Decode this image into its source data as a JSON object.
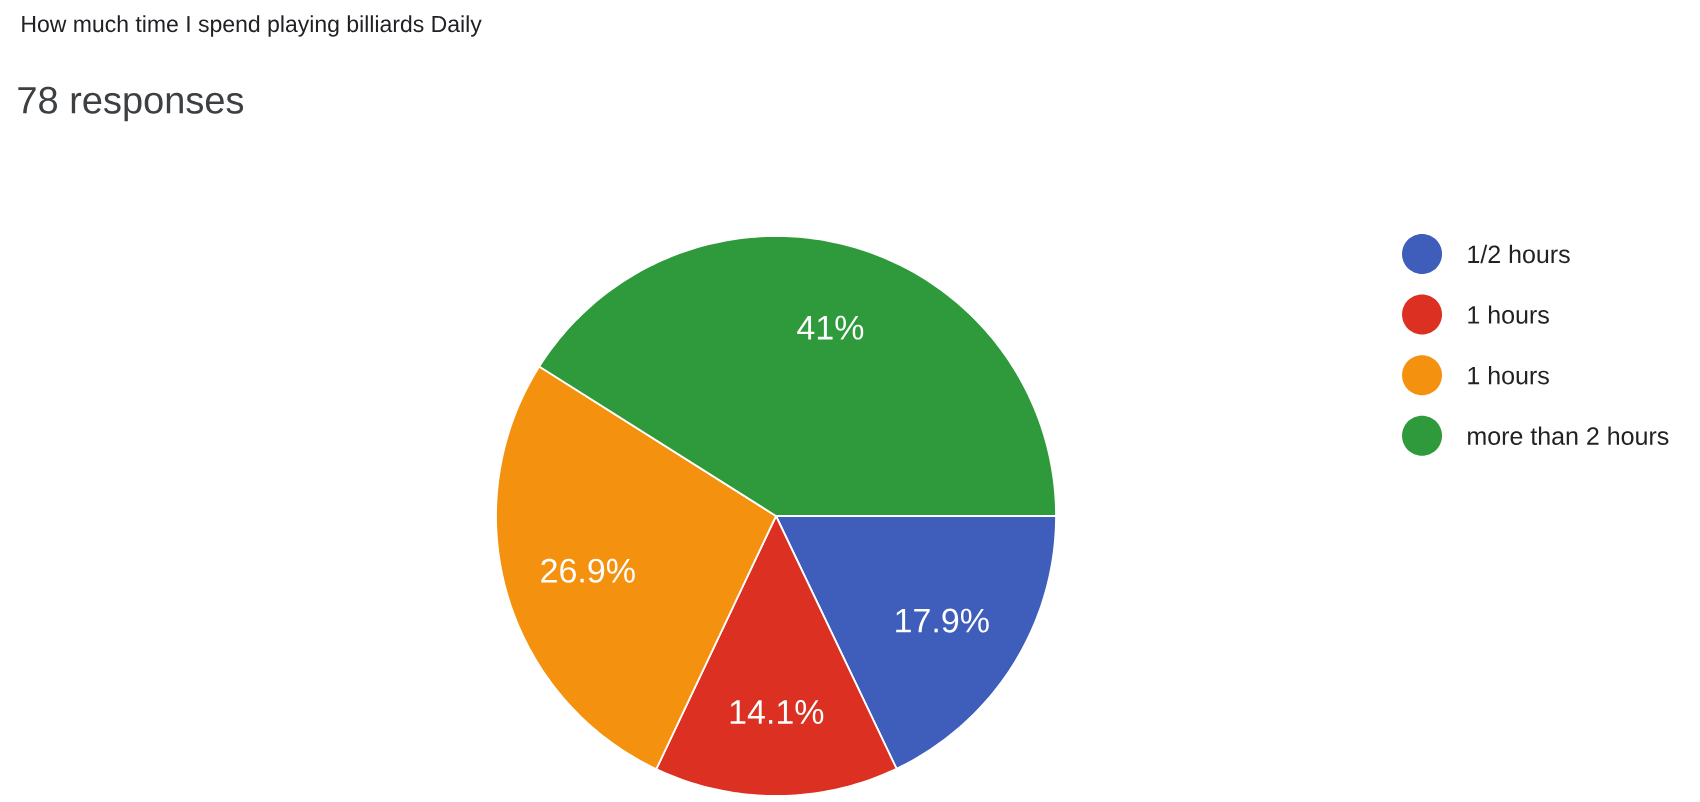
{
  "chart_data": {
    "type": "pie",
    "title": "How much time I spend playing billiards Daily",
    "subtitle": "78 responses",
    "categories": [
      "1/2 hours",
      "1 hours",
      "1 hours",
      "more than 2 hours"
    ],
    "values": [
      17.9,
      14.1,
      26.9,
      41
    ],
    "colors": [
      "#3f5dbb",
      "#dc3022",
      "#f4920f",
      "#2f9a3b"
    ],
    "value_labels": [
      "17.9%",
      "14.1%",
      "26.9%",
      "41%"
    ],
    "legend": "right"
  }
}
